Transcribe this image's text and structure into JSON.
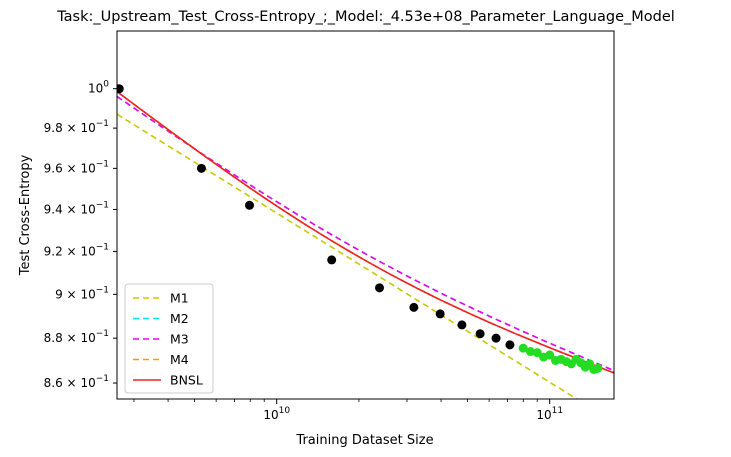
{
  "chart_data": {
    "type": "line",
    "title": "Task:_Upstream_Test_Cross-Entropy_;_Model:_4.53e+08_Parameter_Language_Model",
    "xlabel": "Training Dataset Size",
    "ylabel": "Test Cross-Entropy",
    "xscale": "log",
    "yscale": "log",
    "xlim": [
      2600000000.0,
      172000000000.0
    ],
    "ylim": [
      0.853,
      1.03
    ],
    "grid": false,
    "legend_position": "lower-left",
    "x_ticks": [
      {
        "value": 10000000000.0,
        "base": "10",
        "exp": "10"
      },
      {
        "value": 100000000000.0,
        "base": "10",
        "exp": "11"
      }
    ],
    "y_ticks": [
      {
        "value": 1.0,
        "mant": "",
        "base": "10",
        "exp": "0"
      },
      {
        "value": 0.98,
        "mant": "9.8 × ",
        "base": "10",
        "exp": "−1"
      },
      {
        "value": 0.96,
        "mant": "9.6 × ",
        "base": "10",
        "exp": "−1"
      },
      {
        "value": 0.94,
        "mant": "9.4 × ",
        "base": "10",
        "exp": "−1"
      },
      {
        "value": 0.92,
        "mant": "9.2 × ",
        "base": "10",
        "exp": "−1"
      },
      {
        "value": 0.9,
        "mant": "9 × ",
        "base": "10",
        "exp": "−1"
      },
      {
        "value": 0.88,
        "mant": "8.8 × ",
        "base": "10",
        "exp": "−1"
      },
      {
        "value": 0.86,
        "mant": "8.6 × ",
        "base": "10",
        "exp": "−1"
      }
    ],
    "train_points": {
      "color": "#000000",
      "x": [
        2650000000.0,
        5300000000.0,
        7950000000.0,
        15900000000.0,
        23800000000.0,
        31800000000.0,
        39700000000.0,
        47700000000.0,
        55600000000.0,
        63600000000.0,
        71500000000.0
      ],
      "y": [
        1.0,
        0.96,
        0.942,
        0.916,
        0.903,
        0.894,
        0.891,
        0.886,
        0.882,
        0.88,
        0.877
      ]
    },
    "test_points": {
      "color": "#22dd22",
      "x": [
        80000000000.0,
        85000000000.0,
        90000000000.0,
        95000000000.0,
        100000000000.0,
        105000000000.0,
        110000000000.0,
        115000000000.0,
        120000000000.0,
        125000000000.0,
        130000000000.0,
        135000000000.0,
        140000000000.0,
        145000000000.0,
        150000000000.0
      ],
      "y": [
        0.8755,
        0.874,
        0.8735,
        0.8715,
        0.8725,
        0.87,
        0.8705,
        0.8695,
        0.8685,
        0.8705,
        0.869,
        0.867,
        0.8685,
        0.866,
        0.8665
      ]
    },
    "series": [
      {
        "name": "M1",
        "color": "#c8c800",
        "dash": "6,4",
        "x": [
          2600000000.0,
          172000000000.0
        ],
        "y": [
          0.987,
          0.843
        ]
      },
      {
        "name": "M2",
        "color": "#00e5ee",
        "dash": "6,4",
        "x": [
          2600000000.0,
          172000000000.0
        ],
        "y": [
          0.996,
          0.8655
        ]
      },
      {
        "name": "M3",
        "color": "#ee00ee",
        "dash": "6,4",
        "x": [
          2600000000.0,
          172000000000.0
        ],
        "y": [
          0.996,
          0.8655
        ]
      },
      {
        "name": "M4",
        "color": "#ff9900",
        "dash": "6,4",
        "x": [
          2600000000.0,
          172000000000.0
        ],
        "y": [
          0.9985,
          0.8645
        ]
      },
      {
        "name": "BNSL",
        "color": "#ee2222",
        "dash": "",
        "x": [
          2600000000.0,
          172000000000.0
        ],
        "y": [
          0.9985,
          0.8645
        ]
      }
    ]
  }
}
